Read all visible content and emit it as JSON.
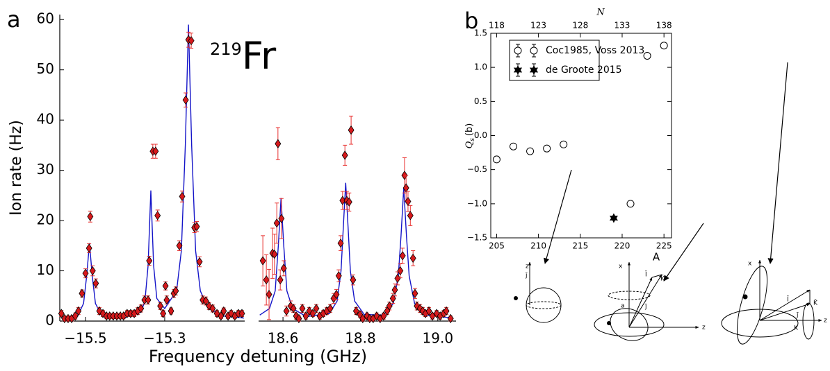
{
  "chart_data": [
    {
      "type": "spectrum",
      "panel_label": "a",
      "annotation": {
        "mass_number": "219",
        "symbol": "Fr"
      },
      "xlabel": "Frequency detuning (GHz)",
      "ylabel": "Ion rate (Hz)",
      "ylim": [
        0,
        61
      ],
      "yticks": [
        0,
        10,
        20,
        30,
        40,
        50,
        60
      ],
      "marker_color": "#d7191c",
      "error_color": "#e8302f",
      "fit_color": "#1414c8",
      "panels": [
        {
          "xlim": [
            -15.565,
            -15.098
          ],
          "xticks": [
            {
              "value": -15.5,
              "label": "−15.5"
            },
            {
              "value": -15.3,
              "label": "−15.3"
            }
          ],
          "x": [
            -15.561,
            -15.553,
            -15.544,
            -15.535,
            -15.526,
            -15.518,
            -15.509,
            -15.5,
            -15.491,
            -15.488,
            -15.482,
            -15.474,
            -15.465,
            -15.456,
            -15.447,
            -15.439,
            -15.43,
            -15.421,
            -15.412,
            -15.404,
            -15.395,
            -15.386,
            -15.377,
            -15.368,
            -15.36,
            -15.351,
            -15.342,
            -15.339,
            -15.33,
            -15.323,
            -15.318,
            -15.311,
            -15.304,
            -15.298,
            -15.295,
            -15.284,
            -15.277,
            -15.272,
            -15.263,
            -15.256,
            -15.247,
            -15.24,
            -15.233,
            -15.225,
            -15.219,
            -15.212,
            -15.204,
            -15.196,
            -15.188,
            -15.179,
            -15.168,
            -15.158,
            -15.151,
            -15.14,
            -15.132,
            -15.123,
            -15.114,
            -15.105
          ],
          "values": [
            1.5,
            0.5,
            0.5,
            0.5,
            1,
            2,
            5.5,
            9.5,
            14.5,
            20.8,
            10,
            7.5,
            2,
            1.5,
            1,
            1,
            1,
            1,
            1,
            1,
            1.5,
            1.5,
            1.5,
            2,
            2.5,
            4.2,
            4.2,
            12,
            33.8,
            33.8,
            21,
            3,
            1.5,
            7,
            4.2,
            2,
            5.5,
            6,
            15,
            24.8,
            44,
            56,
            55.8,
            18.6,
            18.8,
            11.8,
            4.2,
            4,
            3,
            2.5,
            1.5,
            1,
            2,
            1,
            1.5,
            1,
            1.5,
            1.5
          ],
          "errors": [
            0.6,
            0.5,
            0.5,
            0.5,
            0.6,
            0.7,
            0.7,
            0.9,
            0.9,
            1.1,
            1,
            0.9,
            0.7,
            0.6,
            0.5,
            0.5,
            0.5,
            0.5,
            0.5,
            0.5,
            0.6,
            0.6,
            0.6,
            0.7,
            0.7,
            0.8,
            0.8,
            0.9,
            1.4,
            1.4,
            1.1,
            0.7,
            0.6,
            0.8,
            0.8,
            0.6,
            0.8,
            0.8,
            1,
            1.1,
            1.4,
            1.5,
            1.5,
            1,
            1,
            1,
            0.8,
            0.8,
            0.7,
            0.7,
            0.6,
            0.5,
            0.6,
            0.5,
            0.6,
            0.5,
            0.6,
            0.6
          ],
          "fit": {
            "x": [
              -15.56,
              -15.52,
              -15.505,
              -15.497,
              -15.49,
              -15.483,
              -15.475,
              -15.46,
              -15.4,
              -15.36,
              -15.35,
              -15.342,
              -15.335,
              -15.328,
              -15.32,
              -15.3,
              -15.27,
              -15.258,
              -15.248,
              -15.24,
              -15.232,
              -15.222,
              -15.21,
              -15.19,
              -15.15,
              -15.1
            ],
            "y": [
              0.6,
              1,
              3.5,
              9,
              15.5,
              9,
              3.5,
              1.2,
              0.7,
              1.8,
              4,
              11,
              26,
              11,
              4.5,
              2.5,
              6,
              14,
              35,
              59,
              35,
              14,
              6,
              2.5,
              1,
              0.6
            ]
          }
        },
        {
          "xlim": [
            18.537,
            19.047
          ],
          "xticks": [
            18.6,
            18.8,
            {
              "value": 19,
              "label": "19.0"
            }
          ],
          "x": [
            18.548,
            18.557,
            18.564,
            18.573,
            18.578,
            18.584,
            18.587,
            18.593,
            18.596,
            18.602,
            18.609,
            18.62,
            18.627,
            18.634,
            18.641,
            18.65,
            18.659,
            18.668,
            18.677,
            18.686,
            18.695,
            18.704,
            18.713,
            18.722,
            18.731,
            18.738,
            18.744,
            18.749,
            18.754,
            18.76,
            18.765,
            18.771,
            18.776,
            18.781,
            18.789,
            18.799,
            18.806,
            18.817,
            18.824,
            18.833,
            18.842,
            18.851,
            18.86,
            18.869,
            18.875,
            18.884,
            18.889,
            18.896,
            18.903,
            18.909,
            18.914,
            18.918,
            18.923,
            18.929,
            18.936,
            18.941,
            18.946,
            18.954,
            18.961,
            18.968,
            18.977,
            18.986,
            18.997,
            19.006,
            19.015,
            19.022,
            19.033
          ],
          "values": [
            12,
            8.2,
            5.3,
            13.5,
            13.3,
            19.5,
            35.3,
            8.2,
            20.4,
            10.5,
            2,
            3,
            2.5,
            1,
            0.5,
            2.5,
            1,
            2,
            1.5,
            2.5,
            1,
            1.5,
            2,
            2.5,
            4.5,
            5.3,
            9,
            15.5,
            24,
            33,
            24,
            23.7,
            38,
            8.2,
            2,
            1.3,
            0.5,
            1,
            0.5,
            0.5,
            1,
            0.5,
            1,
            2,
            3,
            4.5,
            6.2,
            8.5,
            10,
            13,
            29,
            26.5,
            23.8,
            21,
            12.5,
            5.5,
            3,
            2.5,
            2,
            1.5,
            2,
            1,
            1.5,
            1,
            1.5,
            2,
            0.5
          ],
          "errors": [
            5,
            5,
            5,
            5,
            4,
            4,
            3.2,
            2,
            4,
            1.5,
            1,
            1,
            0.8,
            0.6,
            0.5,
            0.8,
            0.6,
            0.7,
            0.6,
            0.8,
            0.6,
            0.6,
            0.7,
            0.8,
            1,
            1,
            1.2,
            1.5,
            1.8,
            2,
            1.8,
            1.8,
            2.8,
            1,
            0.7,
            0.6,
            0.5,
            0.6,
            0.5,
            0.5,
            0.6,
            0.5,
            0.6,
            0.7,
            0.8,
            1,
            1.2,
            1.3,
            1.4,
            1.5,
            3.5,
            2.5,
            2,
            2,
            1.5,
            1,
            0.8,
            0.8,
            0.7,
            0.6,
            0.7,
            0.6,
            0.6,
            0.6,
            0.6,
            0.7,
            0.5
          ],
          "fit": {
            "x": [
              18.54,
              18.565,
              18.58,
              18.588,
              18.595,
              18.602,
              18.61,
              18.625,
              18.66,
              18.72,
              18.74,
              18.75,
              18.756,
              18.762,
              18.768,
              18.774,
              18.785,
              18.81,
              18.86,
              18.885,
              18.898,
              18.905,
              18.912,
              18.919,
              18.926,
              18.94,
              18.97,
              19.04
            ],
            "y": [
              1.2,
              2.5,
              6,
              15,
              24.5,
              15,
              6,
              2.5,
              0.9,
              1.5,
              4,
              10,
              19,
              27.5,
              19,
              10,
              4,
              1.3,
              1.2,
              3.5,
              9,
              17,
              26.5,
              17,
              9,
              3.5,
              1.2,
              0.6
            ]
          }
        }
      ]
    },
    {
      "type": "scatter",
      "panel_label": "b",
      "xlabel": "A",
      "x2label": "N",
      "ylabel": {
        "symbol": "Q",
        "subscript": "s",
        "unit": "(b)"
      },
      "xlim": [
        204.3,
        225.9
      ],
      "xticks": [
        205,
        210,
        215,
        220,
        225
      ],
      "x2lim": [
        117.3,
        138.9
      ],
      "x2ticks": [
        118,
        123,
        128,
        133,
        138
      ],
      "ylim": [
        -1.5,
        1.5
      ],
      "yticks": [
        {
          "value": -1.5,
          "label": "−1.5"
        },
        {
          "value": -1,
          "label": "−1.0"
        },
        {
          "value": -0.5,
          "label": "−0.5"
        },
        {
          "value": 0,
          "label": "0.0"
        },
        0.5,
        {
          "value": 1,
          "label": "1.0"
        },
        1.5
      ],
      "legend": "upper left",
      "series": [
        {
          "name": "Coc1985, Voss 2013",
          "marker": "circle",
          "color": "#000000",
          "x": [
            205,
            207,
            209,
            211,
            213,
            221,
            223,
            225
          ],
          "values": [
            -0.35,
            -0.16,
            -0.23,
            -0.19,
            -0.13,
            -1.0,
            1.17,
            1.32
          ]
        },
        {
          "name": "de Groote 2015",
          "marker": "star",
          "color": "#000000",
          "x": [
            219
          ],
          "values": [
            -1.21
          ]
        }
      ],
      "diagrams": [
        {
          "labels": [
            "z",
            "j̄"
          ]
        },
        {
          "labels": [
            "x",
            "Ī",
            "K̄",
            "j̄",
            "a",
            "z"
          ]
        },
        {
          "labels": [
            "x",
            "Ī",
            "j̄",
            "K̄",
            "K",
            "z"
          ]
        }
      ]
    }
  ]
}
